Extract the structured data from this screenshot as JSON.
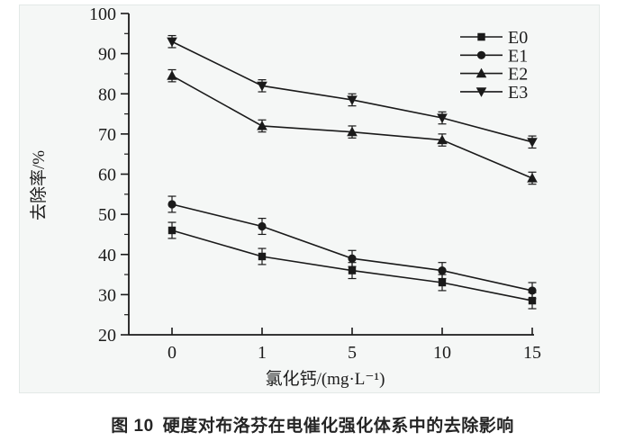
{
  "figure": {
    "caption_label": "图 10",
    "caption_text": "硬度对布洛芬在电催化强化体系中的去除影响"
  },
  "chart_data": {
    "type": "line",
    "title": "",
    "xlabel": "氯化钙/(mg·L⁻¹)",
    "ylabel": "去除率/%",
    "categories": [
      "0",
      "1",
      "5",
      "10",
      "15"
    ],
    "ylim": [
      20,
      100
    ],
    "y_major_ticks": [
      20,
      30,
      40,
      50,
      60,
      70,
      80,
      90,
      100
    ],
    "y_minor_ticks": [
      25,
      35,
      45,
      55,
      65,
      75,
      85,
      95
    ],
    "grid": false,
    "legend_position": "top-right",
    "error_bars": true,
    "line_color": "#1a1a1a",
    "series": [
      {
        "name": "E0",
        "marker": "square",
        "values": [
          46,
          39.5,
          36,
          33,
          28.5
        ],
        "error": 2
      },
      {
        "name": "E1",
        "marker": "circle",
        "values": [
          52.5,
          47,
          39,
          36,
          31
        ],
        "error": 2
      },
      {
        "name": "E2",
        "marker": "triangle-up",
        "values": [
          84.5,
          72,
          70.5,
          68.5,
          59
        ],
        "error": 1.5
      },
      {
        "name": "E3",
        "marker": "triangle-down",
        "values": [
          93,
          82,
          78.5,
          74,
          68
        ],
        "error": 1.5
      }
    ]
  }
}
